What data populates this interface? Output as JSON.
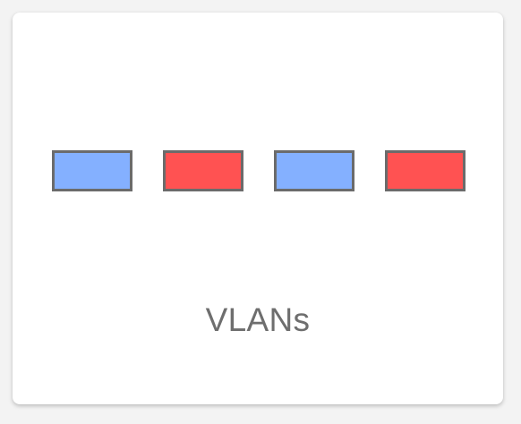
{
  "card": {
    "title": "VLANs"
  },
  "ports": [
    {
      "icon": "vlan-port-blue",
      "color": "#84b0ff"
    },
    {
      "icon": "vlan-port-red",
      "color": "#ff5252"
    },
    {
      "icon": "vlan-port-blue",
      "color": "#84b0ff"
    },
    {
      "icon": "vlan-port-red",
      "color": "#ff5252"
    }
  ],
  "colors": {
    "border": "#6b6b6b",
    "label": "#6e6e6e",
    "card_background": "#ffffff"
  }
}
